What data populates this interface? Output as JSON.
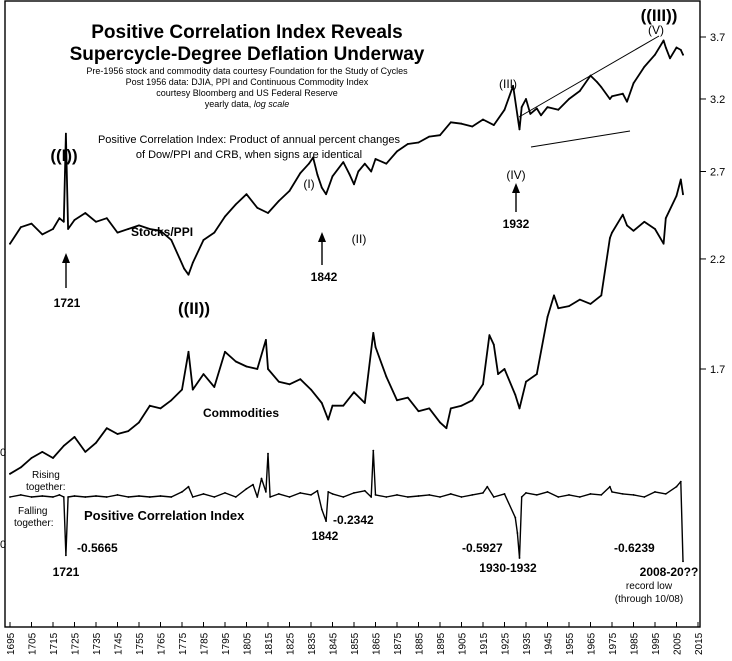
{
  "chart_data": {
    "type": "line",
    "title_lines": [
      "Positive Correlation Index Reveals",
      "Supercycle-Degree Deflation Underway"
    ],
    "notes": [
      "Pre-1956 stock and commodity data courtesy Foundation for the Study of Cycles",
      "Post 1956 data: DJIA, PPI and Continuous Commodity Index",
      "courtesy Bloomberg and US Federal Reserve"
    ],
    "note_last_plain": "yearly data, ",
    "note_last_italic": "log scale",
    "description": [
      "Positive Correlation Index: Product of annual percent changes",
      "of Dow/PPI and CRB, when signs are identical"
    ],
    "x_ticks": [
      1695,
      1705,
      1715,
      1725,
      1735,
      1745,
      1755,
      1765,
      1775,
      1785,
      1795,
      1805,
      1815,
      1825,
      1835,
      1845,
      1855,
      1865,
      1875,
      1885,
      1895,
      1905,
      1915,
      1925,
      1935,
      1945,
      1955,
      1965,
      1975,
      1985,
      1995,
      2005,
      2015
    ],
    "xlim": [
      1695,
      2015
    ],
    "y_ticks": [
      "3.7",
      "3.2",
      "2.7",
      "2.2",
      "1.7"
    ],
    "y_ticks_values": [
      3.7,
      3.2,
      2.7,
      2.2,
      1.7
    ],
    "ylim_log": [
      1.2,
      3.85
    ],
    "y_scale": "log",
    "grid": false,
    "series": [
      {
        "name": "Stocks/PPI",
        "x": [
          1695,
          1700,
          1705,
          1710,
          1715,
          1718,
          1720,
          1721,
          1722,
          1725,
          1730,
          1735,
          1740,
          1745,
          1750,
          1755,
          1760,
          1765,
          1770,
          1774,
          1776,
          1778,
          1780,
          1785,
          1790,
          1795,
          1800,
          1805,
          1810,
          1815,
          1820,
          1825,
          1830,
          1834,
          1836,
          1838,
          1840,
          1842,
          1845,
          1850,
          1853,
          1855,
          1857,
          1860,
          1863,
          1865,
          1870,
          1875,
          1880,
          1885,
          1890,
          1895,
          1900,
          1905,
          1910,
          1915,
          1920,
          1925,
          1929,
          1931,
          1932,
          1933,
          1935,
          1937,
          1940,
          1942,
          1945,
          1950,
          1955,
          1960,
          1965,
          1968,
          1970,
          1974,
          1975,
          1980,
          1982,
          1985,
          1990,
          1995,
          1999,
          2000,
          2002,
          2005,
          2007,
          2008
        ],
        "values": [
          2.28,
          2.37,
          2.39,
          2.33,
          2.36,
          2.42,
          2.4,
          2.95,
          2.36,
          2.41,
          2.45,
          2.4,
          2.42,
          2.34,
          2.36,
          2.38,
          2.36,
          2.35,
          2.3,
          2.2,
          2.15,
          2.12,
          2.18,
          2.3,
          2.34,
          2.43,
          2.5,
          2.56,
          2.48,
          2.45,
          2.52,
          2.58,
          2.69,
          2.75,
          2.79,
          2.68,
          2.6,
          2.56,
          2.67,
          2.76,
          2.68,
          2.62,
          2.7,
          2.75,
          2.7,
          2.78,
          2.75,
          2.83,
          2.88,
          2.89,
          2.93,
          2.94,
          3.03,
          3.02,
          3.0,
          3.05,
          3.01,
          3.12,
          3.3,
          3.08,
          2.98,
          3.14,
          3.2,
          3.09,
          3.13,
          3.08,
          3.14,
          3.12,
          3.2,
          3.26,
          3.38,
          3.33,
          3.29,
          3.2,
          3.22,
          3.24,
          3.18,
          3.32,
          3.45,
          3.55,
          3.67,
          3.61,
          3.52,
          3.61,
          3.59,
          3.55
        ]
      },
      {
        "name": "Commodities",
        "x": [
          1695,
          1700,
          1705,
          1710,
          1715,
          1720,
          1725,
          1730,
          1735,
          1740,
          1745,
          1750,
          1755,
          1760,
          1765,
          1770,
          1775,
          1778,
          1780,
          1785,
          1790,
          1795,
          1800,
          1805,
          1810,
          1814,
          1815,
          1820,
          1825,
          1830,
          1835,
          1840,
          1843,
          1845,
          1850,
          1855,
          1860,
          1864,
          1865,
          1870,
          1875,
          1880,
          1885,
          1890,
          1895,
          1898,
          1900,
          1905,
          1910,
          1915,
          1918,
          1920,
          1922,
          1925,
          1930,
          1932,
          1935,
          1940,
          1945,
          1948,
          1950,
          1955,
          1960,
          1965,
          1970,
          1974,
          1975,
          1980,
          1982,
          1985,
          1990,
          1995,
          1999,
          2000,
          2005,
          2007,
          2008
        ],
        "values": [
          1.33,
          1.35,
          1.38,
          1.4,
          1.38,
          1.42,
          1.45,
          1.4,
          1.43,
          1.48,
          1.46,
          1.47,
          1.5,
          1.56,
          1.55,
          1.58,
          1.62,
          1.77,
          1.62,
          1.68,
          1.63,
          1.77,
          1.73,
          1.71,
          1.7,
          1.82,
          1.7,
          1.65,
          1.64,
          1.66,
          1.62,
          1.57,
          1.51,
          1.56,
          1.56,
          1.61,
          1.57,
          1.85,
          1.79,
          1.67,
          1.58,
          1.59,
          1.54,
          1.55,
          1.5,
          1.48,
          1.55,
          1.56,
          1.58,
          1.64,
          1.84,
          1.8,
          1.68,
          1.7,
          1.6,
          1.55,
          1.65,
          1.68,
          1.92,
          2.02,
          1.96,
          1.97,
          2.0,
          1.98,
          2.02,
          2.31,
          2.34,
          2.44,
          2.38,
          2.35,
          2.4,
          2.36,
          2.28,
          2.42,
          2.55,
          2.65,
          2.56
        ]
      }
    ],
    "pci_series": {
      "name": "Positive Correlation Index",
      "x": [
        1695,
        1700,
        1705,
        1710,
        1715,
        1718,
        1720,
        1721,
        1722,
        1725,
        1730,
        1735,
        1740,
        1745,
        1750,
        1755,
        1760,
        1765,
        1770,
        1775,
        1778,
        1780,
        1785,
        1790,
        1795,
        1800,
        1805,
        1808,
        1810,
        1812,
        1814,
        1815,
        1816,
        1820,
        1825,
        1830,
        1835,
        1838,
        1840,
        1842,
        1843,
        1845,
        1850,
        1855,
        1860,
        1863,
        1864,
        1865,
        1870,
        1875,
        1880,
        1885,
        1890,
        1895,
        1900,
        1905,
        1910,
        1915,
        1917,
        1920,
        1925,
        1930,
        1931,
        1932,
        1933,
        1935,
        1940,
        1945,
        1950,
        1955,
        1960,
        1965,
        1970,
        1974,
        1975,
        1980,
        1985,
        1990,
        1995,
        2000,
        2005,
        2007,
        2008
      ],
      "values": [
        0.0,
        0.02,
        0.0,
        0.01,
        0.0,
        0.02,
        0.0,
        -0.5665,
        0.0,
        0.01,
        0.0,
        0.01,
        0.0,
        0.02,
        0.0,
        0.01,
        0.0,
        0.01,
        0.0,
        0.05,
        0.1,
        0.0,
        0.03,
        0.0,
        0.04,
        0.0,
        0.08,
        0.12,
        0.0,
        0.18,
        0.05,
        0.42,
        0.0,
        0.03,
        0.0,
        0.04,
        0.02,
        0.06,
        -0.12,
        -0.2342,
        0.05,
        0.03,
        0.0,
        0.04,
        0.06,
        0.0,
        0.45,
        0.02,
        0.0,
        0.02,
        0.0,
        0.01,
        0.02,
        0.0,
        0.03,
        0.0,
        0.02,
        0.04,
        0.1,
        0.0,
        0.03,
        -0.2,
        -0.35,
        -0.5927,
        0.0,
        0.04,
        0.02,
        0.05,
        0.0,
        0.02,
        0.0,
        0.03,
        0.02,
        0.1,
        0.05,
        0.03,
        0.02,
        0.0,
        0.05,
        0.03,
        0.1,
        0.15,
        -0.6239
      ]
    },
    "labels": {
      "stocks": "Stocks/PPI",
      "commodities": "Commodities",
      "pci": "Positive Correlation Index",
      "rising1": "Rising",
      "rising2": "together:",
      "falling1": "Falling",
      "falling2": "together:"
    },
    "annotations": {
      "I_big": "((I))",
      "II_big": "((II))",
      "III_big": "((III))",
      "I": "(I)",
      "II": "(II)",
      "III": "(III)",
      "IV": "(IV)",
      "V": "(V)",
      "y1721": "1721",
      "y1842": "1842",
      "y1932": "1932",
      "pci_1721_val": "-0.5665",
      "pci_1721_year": "1721",
      "pci_1842_val": "-0.2342",
      "pci_1842_year": "1842",
      "pci_1932_val": "-0.5927",
      "pci_1932_year": "1930-1932",
      "pci_2008_val": "-0.6239",
      "pci_2008_year": "2008-20??",
      "record1": "record low",
      "record2": "(through 10/08)"
    }
  }
}
